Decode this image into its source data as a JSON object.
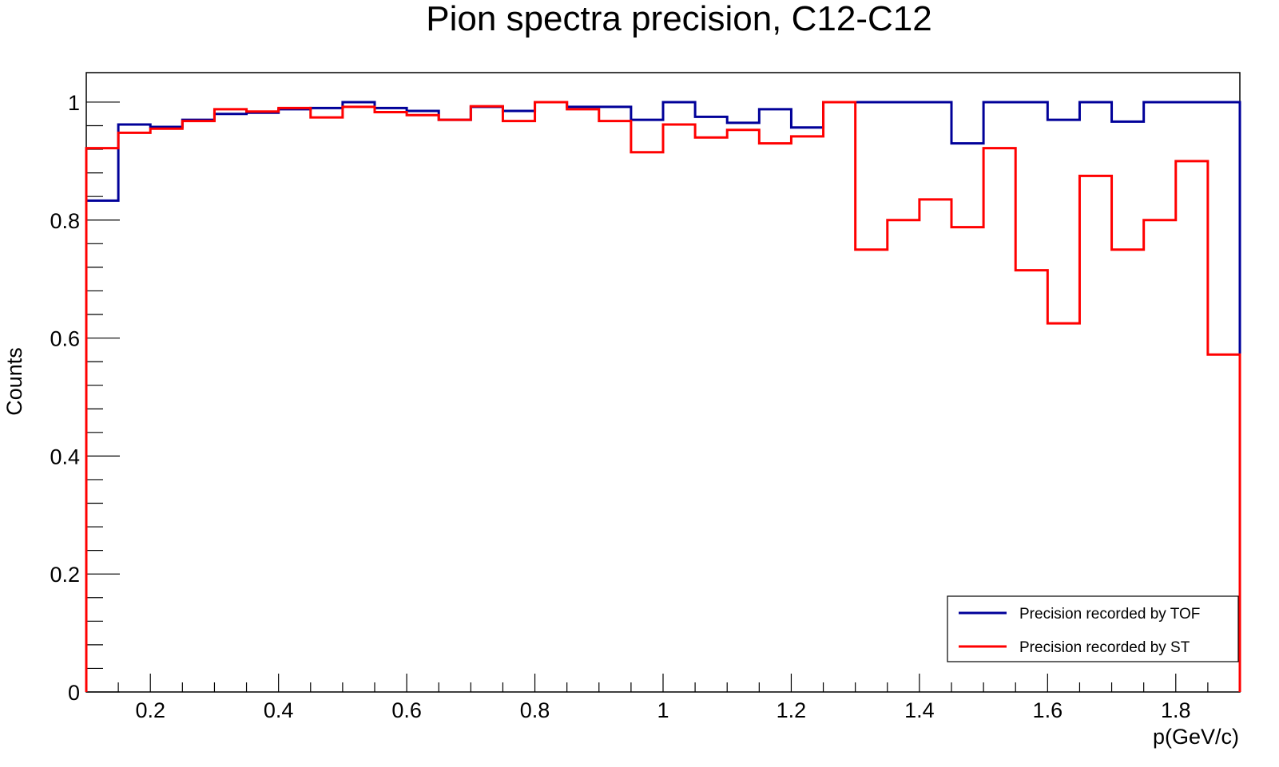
{
  "chart_data": {
    "type": "line",
    "step": true,
    "title": "Pion spectra precision, C12-C12",
    "xlabel": "p(GeV/c)",
    "ylabel": "Counts",
    "xlim": [
      0.1,
      1.9
    ],
    "ylim": [
      0,
      1.05
    ],
    "xticks": [
      0.2,
      0.4,
      0.6,
      0.8,
      1.0,
      1.2,
      1.4,
      1.6,
      1.8
    ],
    "xtick_labels": [
      "0.2",
      "0.4",
      "0.6",
      "0.8",
      "1",
      "1.2",
      "1.4",
      "1.6",
      "1.8"
    ],
    "yticks": [
      0,
      0.2,
      0.4,
      0.6,
      0.8,
      1.0
    ],
    "ytick_labels": [
      "0",
      "0.2",
      "0.4",
      "0.6",
      "0.8",
      "1"
    ],
    "legend_position": "bottom-right",
    "bin_edges": [
      0.1,
      0.15,
      0.2,
      0.25,
      0.3,
      0.35,
      0.4,
      0.45,
      0.5,
      0.55,
      0.6,
      0.65,
      0.7,
      0.75,
      0.8,
      0.85,
      0.9,
      0.95,
      1.0,
      1.05,
      1.1,
      1.15,
      1.2,
      1.25,
      1.3,
      1.35,
      1.4,
      1.45,
      1.5,
      1.55,
      1.6,
      1.65,
      1.7,
      1.75,
      1.8,
      1.85,
      1.9
    ],
    "series": [
      {
        "name": "Precision recorded by TOF",
        "color": "#000099",
        "values": [
          0.833,
          0.962,
          0.958,
          0.97,
          0.98,
          0.982,
          0.988,
          0.99,
          1.0,
          0.99,
          0.985,
          0.97,
          0.992,
          0.985,
          1.0,
          0.992,
          0.992,
          0.97,
          1.0,
          0.975,
          0.965,
          0.988,
          0.957,
          1.0,
          1.0,
          1.0,
          1.0,
          0.93,
          1.0,
          1.0,
          0.97,
          1.0,
          0.967,
          1.0,
          1.0,
          1.0
        ]
      },
      {
        "name": "Precision recorded by ST",
        "color": "#ff0000",
        "values": [
          0.922,
          0.948,
          0.955,
          0.968,
          0.988,
          0.984,
          0.99,
          0.974,
          0.992,
          0.983,
          0.978,
          0.97,
          0.993,
          0.968,
          1.0,
          0.988,
          0.968,
          0.915,
          0.962,
          0.94,
          0.953,
          0.93,
          0.942,
          1.0,
          0.75,
          0.8,
          0.835,
          0.788,
          0.922,
          0.715,
          0.625,
          0.875,
          0.75,
          0.8,
          0.9,
          0.572
        ]
      }
    ]
  }
}
